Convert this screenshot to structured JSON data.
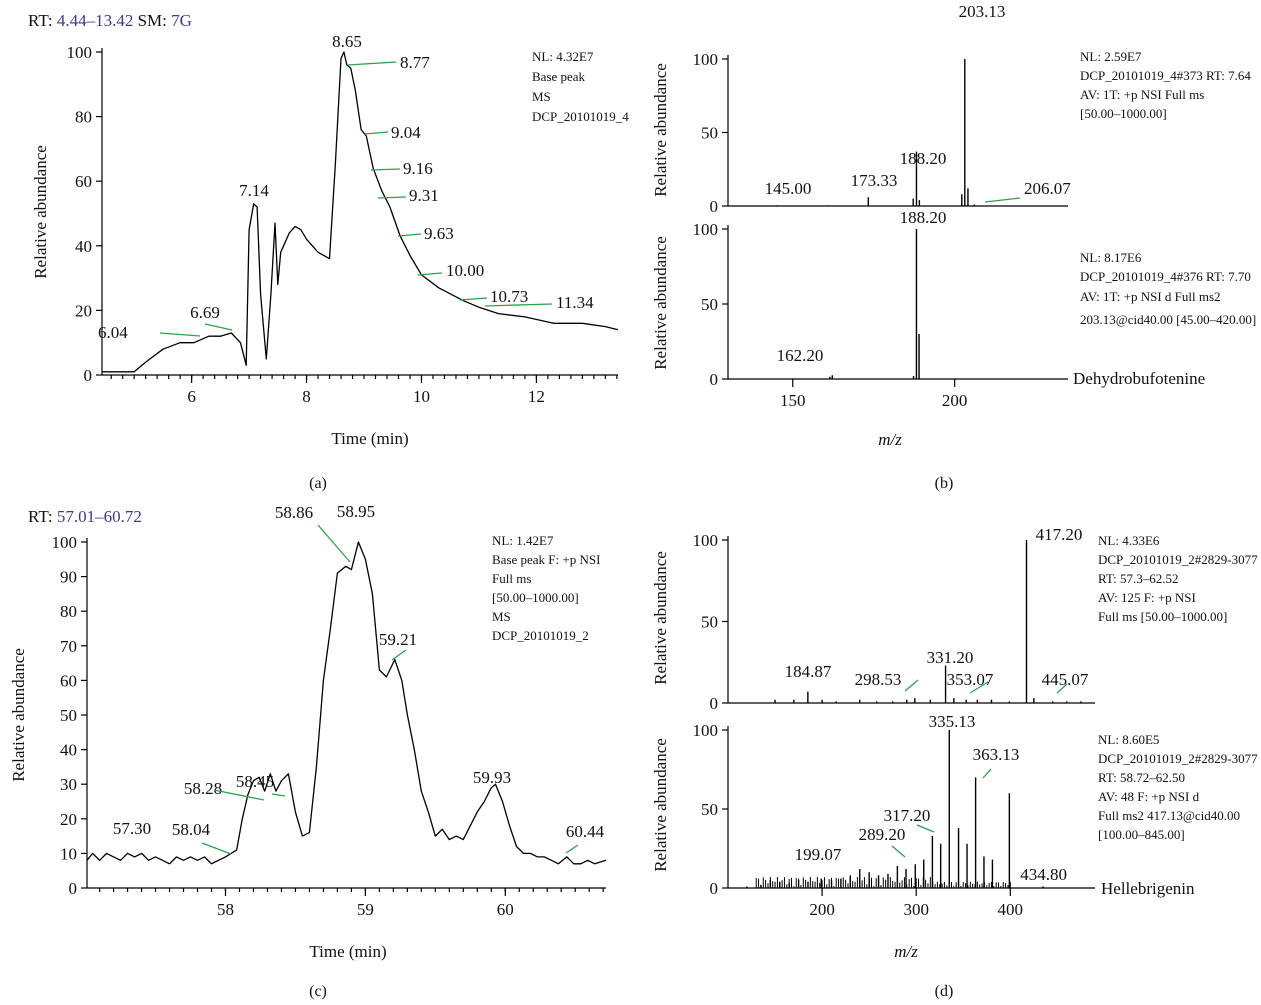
{
  "figure": {
    "panels": [
      {
        "id": "a",
        "caption": "(a)",
        "header_prefix": "RT: ",
        "header_rt": "4.44–13.42",
        "header_sm_prefix": " SM: ",
        "header_sm": "7G",
        "info_lines": [
          "NL: 4.32E7",
          "Base peak",
          "MS",
          "DCP_20101019_4"
        ]
      },
      {
        "id": "b",
        "caption": "(b)",
        "top_info_lines": [
          "NL: 2.59E7",
          "DCP_20101019_4#373 RT: 7.64",
          "AV: 1T: +p NSI Full ms",
          "[50.00–1000.00]"
        ],
        "bottom_info_lines": [
          "NL: 8.17E6",
          "DCP_20101019_4#376 RT: 7.70",
          "AV: 1T: +p NSI d Full ms2",
          "203.13@cid40.00 [45.00–420.00]"
        ],
        "compound": "Dehydrobufotenine"
      },
      {
        "id": "c",
        "caption": "(c)",
        "header_prefix": "RT: ",
        "header_rt": "57.01–60.72",
        "info_lines": [
          "NL: 1.42E7",
          "Base peak F: +p NSI",
          "Full ms",
          "[50.00–1000.00]",
          "MS",
          "DCP_20101019_2"
        ]
      },
      {
        "id": "d",
        "caption": "(d)",
        "top_info_lines": [
          "NL: 4.33E6",
          "DCP_20101019_2#2829-3077",
          "RT: 57.3–62.52",
          "AV: 125 F: +p NSI",
          "Full ms [50.00–1000.00]"
        ],
        "bottom_info_lines": [
          "NL: 8.60E5",
          "DCP_20101019_2#2829-3077",
          "RT: 58.72–62.50",
          "AV: 48 F: +p NSI d",
          "Full ms2 417.13@cid40.00",
          "[100.00–845.00]"
        ],
        "compound": "Hellebrigenin"
      }
    ]
  },
  "chart_data": [
    {
      "panel": "a",
      "type": "line",
      "xlabel": "Time (min)",
      "ylabel": "Relative abundance",
      "xlim": [
        4.44,
        13.42
      ],
      "ylim": [
        0,
        100
      ],
      "xticks": [
        "6",
        "8",
        "10",
        "12"
      ],
      "yticks": [
        "0",
        "20",
        "40",
        "60",
        "80",
        "100"
      ],
      "x": [
        4.44,
        5.0,
        5.2,
        5.5,
        5.8,
        6.04,
        6.3,
        6.5,
        6.69,
        6.85,
        6.95,
        7.0,
        7.08,
        7.14,
        7.2,
        7.3,
        7.38,
        7.45,
        7.5,
        7.55,
        7.6,
        7.7,
        7.8,
        7.9,
        8.0,
        8.2,
        8.4,
        8.5,
        8.6,
        8.65,
        8.7,
        8.77,
        8.85,
        8.95,
        9.04,
        9.16,
        9.31,
        9.45,
        9.63,
        9.8,
        10.0,
        10.3,
        10.73,
        11.0,
        11.34,
        11.8,
        12.3,
        12.8,
        13.2,
        13.42
      ],
      "y": [
        1,
        1,
        4,
        8,
        10,
        10,
        12,
        12,
        13,
        10,
        3,
        45,
        53,
        52,
        25,
        5,
        25,
        47,
        28,
        38,
        40,
        44,
        46,
        45,
        42,
        38,
        36,
        65,
        98,
        100,
        96,
        95,
        88,
        76,
        74,
        64,
        57,
        52,
        43,
        37,
        31,
        27,
        23,
        21,
        19,
        18,
        16,
        16,
        15,
        14
      ],
      "peak_labels": [
        "6.04",
        "6.69",
        "7.14",
        "8.65",
        "8.77",
        "9.04",
        "9.16",
        "9.31",
        "9.63",
        "10.00",
        "10.73",
        "11.34"
      ]
    },
    {
      "panel": "b-top",
      "type": "bar",
      "xlim": [
        130,
        235
      ],
      "ylim": [
        0,
        100
      ],
      "yticks": [
        "0",
        "50",
        "100"
      ],
      "ylabel": "Relative abundance",
      "x": [
        145.0,
        161.0,
        173.33,
        187.2,
        188.2,
        189.1,
        202.2,
        203.13,
        204.1,
        206.07
      ],
      "values": [
        0.5,
        0.5,
        6,
        5,
        37,
        4,
        8,
        100,
        12,
        1
      ],
      "peak_labels": [
        "145.00",
        "173.33",
        "188.20",
        "203.13",
        "206.07"
      ]
    },
    {
      "panel": "b-bottom",
      "type": "bar",
      "xlabel": "m/z",
      "ylabel": "Relative abundance",
      "xlim": [
        130,
        235
      ],
      "ylim": [
        0,
        100
      ],
      "xticks": [
        "150",
        "200"
      ],
      "yticks": [
        "0",
        "50",
        "100"
      ],
      "x": [
        161.5,
        162.2,
        187.3,
        188.2,
        189.0
      ],
      "values": [
        1.5,
        2.5,
        2,
        100,
        30
      ],
      "peak_labels": [
        "162.20",
        "188.20"
      ]
    },
    {
      "panel": "c",
      "type": "line",
      "xlabel": "Time (min)",
      "ylabel": "Relative abundance",
      "xlim": [
        57.01,
        60.72
      ],
      "ylim": [
        0,
        100
      ],
      "xticks": [
        "58",
        "59",
        "60"
      ],
      "yticks": [
        "0",
        "10",
        "20",
        "30",
        "40",
        "50",
        "60",
        "70",
        "80",
        "90",
        "100"
      ],
      "x": [
        57.01,
        57.05,
        57.1,
        57.15,
        57.2,
        57.25,
        57.3,
        57.35,
        57.4,
        57.45,
        57.5,
        57.55,
        57.6,
        57.65,
        57.7,
        57.75,
        57.8,
        57.85,
        57.9,
        57.95,
        58.0,
        58.04,
        58.08,
        58.12,
        58.16,
        58.2,
        58.24,
        58.28,
        58.32,
        58.36,
        58.4,
        58.45,
        58.5,
        58.55,
        58.6,
        58.65,
        58.7,
        58.75,
        58.8,
        58.86,
        58.9,
        58.95,
        59.0,
        59.05,
        59.1,
        59.15,
        59.21,
        59.26,
        59.3,
        59.35,
        59.4,
        59.45,
        59.5,
        59.55,
        59.6,
        59.65,
        59.7,
        59.75,
        59.8,
        59.85,
        59.9,
        59.93,
        59.98,
        60.03,
        60.08,
        60.13,
        60.18,
        60.23,
        60.28,
        60.33,
        60.38,
        60.44,
        60.49,
        60.54,
        60.59,
        60.64,
        60.72
      ],
      "y": [
        8,
        10,
        8,
        10,
        9,
        8,
        10,
        9,
        10,
        8,
        9,
        8,
        7,
        9,
        8,
        9,
        8,
        9,
        7,
        8,
        9,
        10,
        11,
        20,
        27,
        31,
        32,
        28,
        33,
        28,
        31,
        33,
        22,
        15,
        16,
        35,
        60,
        75,
        91,
        93,
        92,
        100,
        95,
        85,
        63,
        61,
        66,
        60,
        50,
        40,
        28,
        22,
        15,
        17,
        14,
        15,
        14,
        18,
        22,
        25,
        29,
        30,
        25,
        18,
        12,
        10,
        10,
        9,
        9,
        8,
        7,
        9,
        7,
        7,
        8,
        7,
        8
      ],
      "peak_labels": [
        "57.30",
        "58.04",
        "58.28",
        "58.45",
        "58.86",
        "58.95",
        "59.21",
        "59.93",
        "60.44"
      ]
    },
    {
      "panel": "d-top",
      "type": "bar",
      "ylabel": "Relative abundance",
      "xlim": [
        100,
        490
      ],
      "ylim": [
        0,
        100
      ],
      "yticks": [
        "0",
        "50",
        "100"
      ],
      "x": [
        150,
        170,
        184.87,
        200,
        215,
        240,
        258,
        275,
        290,
        298.53,
        315,
        331.2,
        340,
        353.07,
        365,
        380,
        399,
        417.2,
        425,
        445.07,
        460,
        475
      ],
      "values": [
        2,
        2,
        7,
        2,
        1,
        2,
        1,
        1,
        2,
        3,
        2,
        23,
        3,
        2,
        2,
        2,
        1,
        100,
        3,
        1,
        1,
        1
      ],
      "peak_labels": [
        "184.87",
        "298.53",
        "331.20",
        "353.07",
        "417.20",
        "445.07"
      ]
    },
    {
      "panel": "d-bottom",
      "type": "bar",
      "xlabel": "m/z",
      "ylabel": "Relative abundance",
      "xlim": [
        100,
        490
      ],
      "ylim": [
        0,
        100
      ],
      "xticks": [
        "200",
        "300",
        "400"
      ],
      "yticks": [
        "0",
        "50",
        "100"
      ],
      "x": [
        120,
        135,
        145,
        155,
        165,
        175,
        185,
        199.07,
        210,
        220,
        230,
        240,
        250,
        260,
        270,
        280,
        289.2,
        299,
        308,
        317.2,
        326,
        335.13,
        345,
        354,
        363.13,
        372,
        381,
        399,
        434.8
      ],
      "values": [
        1,
        2,
        5,
        4,
        3,
        5,
        4,
        6,
        5,
        6,
        8,
        12,
        10,
        8,
        9,
        14,
        12,
        15,
        18,
        33,
        28,
        100,
        38,
        28,
        70,
        20,
        18,
        60,
        1
      ],
      "peak_labels": [
        "199.07",
        "289.20",
        "317.20",
        "335.13",
        "363.13",
        "434.80"
      ]
    }
  ]
}
